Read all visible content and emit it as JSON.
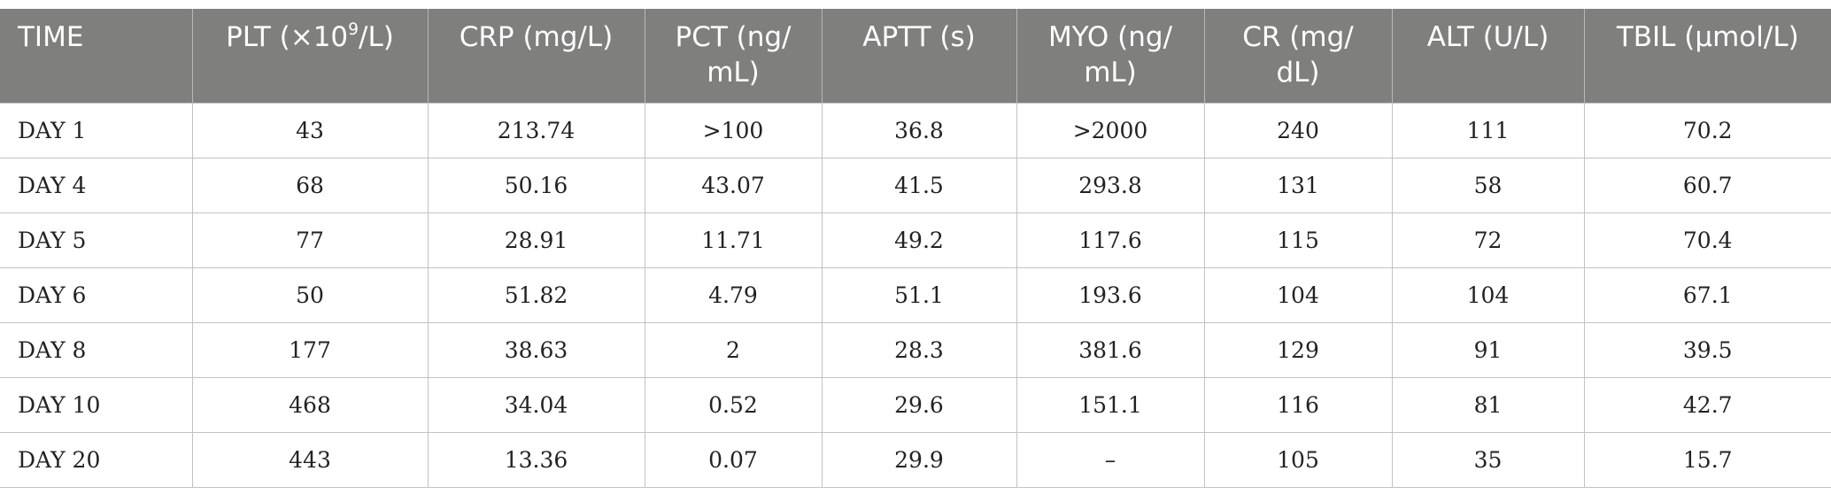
{
  "table": {
    "headers": {
      "time": "TIME",
      "plt_prefix": "PLT (×10",
      "plt_sup": "9",
      "plt_suffix": "/L)",
      "crp": "CRP (mg/L)",
      "pct": "PCT (ng/ mL)",
      "aptt": "APTT (s)",
      "myo": "MYO (ng/ mL)",
      "cr": "CR (mg/ dL)",
      "alt": "ALT (U/L)",
      "tbil": "TBIL (μmol/L)"
    },
    "rows": [
      [
        "DAY 1",
        "43",
        "213.74",
        ">100",
        "36.8",
        ">2000",
        "240",
        "111",
        "70.2"
      ],
      [
        "DAY 4",
        "68",
        "50.16",
        "43.07",
        "41.5",
        "293.8",
        "131",
        "58",
        "60.7"
      ],
      [
        "DAY 5",
        "77",
        "28.91",
        "11.71",
        "49.2",
        "117.6",
        "115",
        "72",
        "70.4"
      ],
      [
        "DAY 6",
        "50",
        "51.82",
        "4.79",
        "51.1",
        "193.6",
        "104",
        "104",
        "67.1"
      ],
      [
        "DAY 8",
        "177",
        "38.63",
        "2",
        "28.3",
        "381.6",
        "129",
        "91",
        "39.5"
      ],
      [
        "DAY 10",
        "468",
        "34.04",
        "0.52",
        "29.6",
        "151.1",
        "116",
        "81",
        "42.7"
      ],
      [
        "DAY 20",
        "443",
        "13.36",
        "0.07",
        "29.9",
        "–",
        "105",
        "35",
        "15.7"
      ]
    ]
  }
}
